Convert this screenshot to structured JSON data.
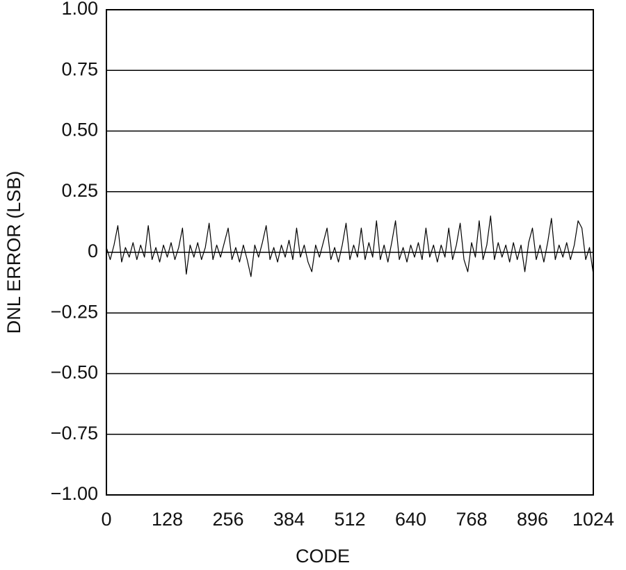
{
  "chart_data": {
    "type": "line",
    "xlabel": "CODE",
    "ylabel": "DNL ERROR (LSB)",
    "color": "#000000",
    "grid": true,
    "xlim": [
      0,
      1024
    ],
    "xticks": [
      0,
      128,
      256,
      384,
      512,
      640,
      768,
      896,
      1024
    ],
    "ylim": [
      -1,
      1
    ],
    "yticks": [
      {
        "value": 1,
        "label": "1.00"
      },
      0.75,
      {
        "value": 0.5,
        "label": "0.50"
      },
      0.25,
      0,
      {
        "value": -0.25,
        "label": "−0.25"
      },
      {
        "value": -0.5,
        "label": "−0.50"
      },
      {
        "value": -0.75,
        "label": "−0.75"
      },
      {
        "value": -1,
        "label": "−1.00"
      }
    ],
    "x": [
      0,
      8,
      16,
      24,
      32,
      40,
      48,
      56,
      64,
      72,
      80,
      88,
      96,
      104,
      112,
      120,
      128,
      136,
      144,
      152,
      160,
      168,
      176,
      184,
      192,
      200,
      208,
      216,
      224,
      232,
      240,
      248,
      256,
      264,
      272,
      280,
      288,
      296,
      304,
      312,
      320,
      328,
      336,
      344,
      352,
      360,
      368,
      376,
      384,
      392,
      400,
      408,
      416,
      424,
      432,
      440,
      448,
      456,
      464,
      472,
      480,
      488,
      496,
      504,
      512,
      520,
      528,
      536,
      544,
      552,
      560,
      568,
      576,
      584,
      592,
      600,
      608,
      616,
      624,
      632,
      640,
      648,
      656,
      664,
      672,
      680,
      688,
      696,
      704,
      712,
      720,
      728,
      736,
      744,
      752,
      760,
      768,
      776,
      784,
      792,
      800,
      808,
      816,
      824,
      832,
      840,
      848,
      856,
      864,
      872,
      880,
      888,
      896,
      904,
      912,
      920,
      928,
      936,
      944,
      952,
      960,
      968,
      976,
      984,
      992,
      1000,
      1008,
      1016,
      1024
    ],
    "values": [
      0.02,
      -0.03,
      0.03,
      0.11,
      -0.04,
      0.02,
      -0.02,
      0.04,
      -0.03,
      0.03,
      -0.02,
      0.11,
      -0.03,
      0.02,
      -0.04,
      0.03,
      -0.02,
      0.04,
      -0.03,
      0.02,
      0.1,
      -0.09,
      0.03,
      -0.02,
      0.04,
      -0.03,
      0.02,
      0.12,
      -0.03,
      0.03,
      -0.02,
      0.04,
      0.1,
      -0.03,
      0.02,
      -0.04,
      0.03,
      -0.03,
      -0.1,
      0.03,
      -0.02,
      0.04,
      0.11,
      -0.03,
      0.02,
      -0.04,
      0.03,
      -0.02,
      0.05,
      -0.03,
      0.1,
      -0.02,
      0.03,
      -0.04,
      -0.08,
      0.03,
      -0.02,
      0.04,
      0.1,
      -0.03,
      0.02,
      -0.04,
      0.03,
      0.12,
      -0.03,
      0.03,
      -0.02,
      0.1,
      -0.03,
      0.04,
      -0.02,
      0.13,
      -0.03,
      0.03,
      -0.04,
      0.04,
      0.13,
      -0.03,
      0.02,
      -0.04,
      0.03,
      -0.02,
      0.04,
      -0.03,
      0.1,
      -0.02,
      0.03,
      -0.04,
      0.03,
      -0.02,
      0.1,
      -0.03,
      0.03,
      0.12,
      -0.03,
      -0.08,
      0.04,
      -0.02,
      0.13,
      -0.03,
      0.03,
      0.15,
      -0.03,
      0.04,
      -0.02,
      0.03,
      -0.04,
      0.04,
      -0.03,
      0.03,
      -0.08,
      0.04,
      0.1,
      -0.03,
      0.03,
      -0.04,
      0.04,
      0.14,
      -0.03,
      0.03,
      -0.02,
      0.04,
      -0.03,
      0.03,
      0.13,
      0.1,
      -0.03,
      0.02,
      -0.09
    ]
  }
}
